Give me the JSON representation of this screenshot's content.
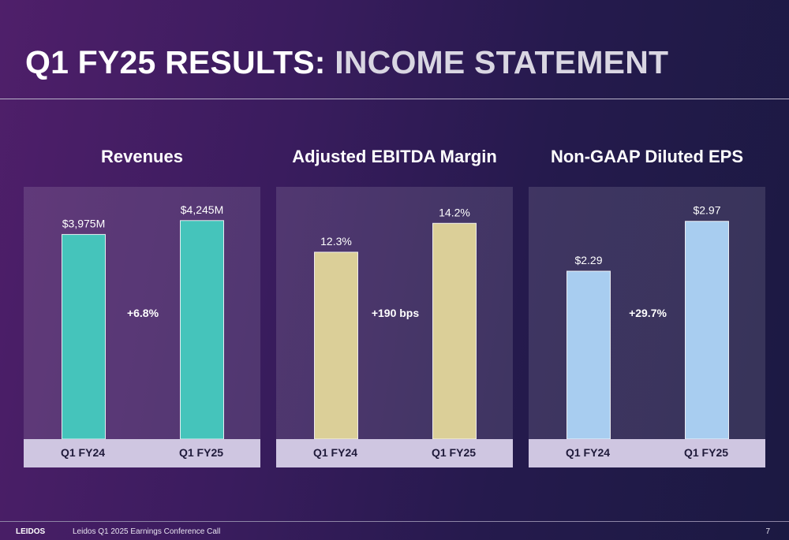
{
  "slide": {
    "title_part1": "Q1 FY25 RESULTS:",
    "title_part2": "INCOME STATEMENT"
  },
  "footer": {
    "brand": "LEIDOS",
    "text": "Leidos Q1 2025 Earnings Conference Call",
    "page": "7"
  },
  "chart_data": [
    {
      "type": "bar",
      "title": "Revenues",
      "categories": [
        "Q1 FY24",
        "Q1 FY25"
      ],
      "values": [
        3975,
        4245
      ],
      "value_labels": [
        "$3,975M",
        "$4,245M"
      ],
      "change_label": "+6.8%",
      "ylim": [
        0,
        4900
      ],
      "color": "#45c4bb"
    },
    {
      "type": "bar",
      "title": "Adjusted EBITDA Margin",
      "categories": [
        "Q1 FY24",
        "Q1 FY25"
      ],
      "values": [
        12.3,
        14.2
      ],
      "value_labels": [
        "12.3%",
        "14.2%"
      ],
      "change_label": "+190 bps",
      "ylim": [
        0,
        16.6
      ],
      "color": "#dbcf98"
    },
    {
      "type": "bar",
      "title": "Non-GAAP Diluted EPS",
      "categories": [
        "Q1 FY24",
        "Q1 FY25"
      ],
      "values": [
        2.29,
        2.97
      ],
      "value_labels": [
        "$2.29",
        "$2.97"
      ],
      "change_label": "+29.7%",
      "ylim": [
        0,
        3.44
      ],
      "color": "#a8cdf0"
    }
  ]
}
